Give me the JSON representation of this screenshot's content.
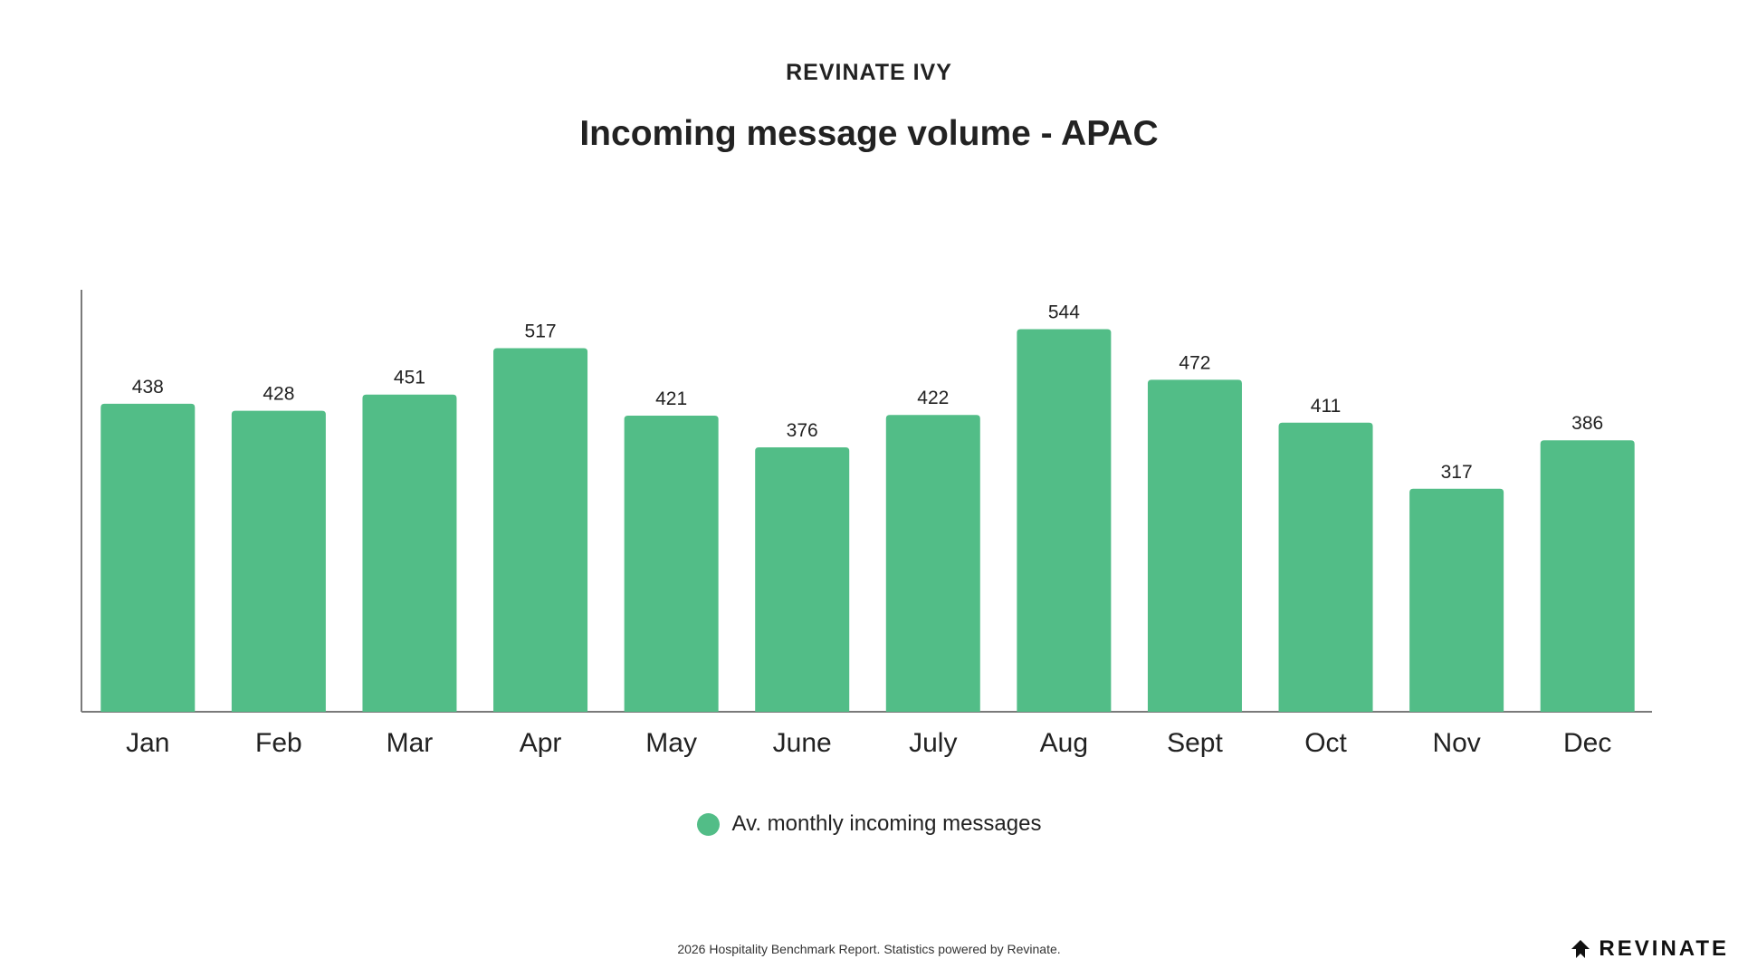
{
  "header": {
    "kicker": "REVINATE IVY",
    "title": "Incoming message volume - APAC"
  },
  "legend": {
    "label": "Av. monthly incoming messages"
  },
  "footer": {
    "text": "2026 Hospitality Benchmark Report. Statistics powered by Revinate."
  },
  "brand": {
    "logo_text": "REVINATE",
    "logo_icon": "revinate-logo-icon"
  },
  "colors": {
    "bar": "#52BD87",
    "axis": "#7a7a7a",
    "text": "#222222"
  },
  "chart_data": {
    "type": "bar",
    "title": "Incoming message volume - APAC",
    "categories": [
      "Jan",
      "Feb",
      "Mar",
      "Apr",
      "May",
      "June",
      "July",
      "Aug",
      "Sept",
      "Oct",
      "Nov",
      "Dec"
    ],
    "series": [
      {
        "name": "Av. monthly incoming messages",
        "values": [
          438,
          428,
          451,
          517,
          421,
          376,
          422,
          544,
          472,
          411,
          317,
          386
        ]
      }
    ],
    "ylim": [
      0,
      600
    ],
    "grid": false,
    "legend_position": "bottom-center",
    "data_labels": true
  }
}
